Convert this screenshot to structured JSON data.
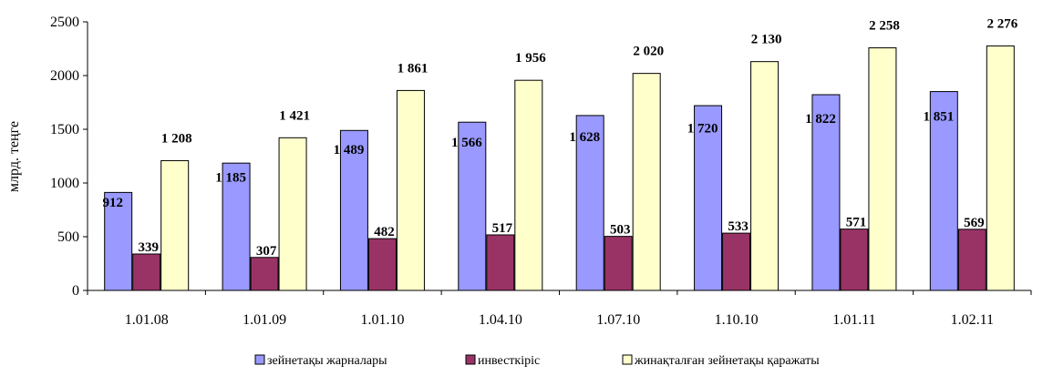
{
  "chart_data": {
    "type": "bar",
    "title": "",
    "xlabel": "",
    "ylabel": "млрд. теңге",
    "ylim": [
      0,
      2500
    ],
    "yticks": [
      0,
      500,
      1000,
      1500,
      2000,
      2500
    ],
    "grid": false,
    "legend_position": "bottom",
    "categories": [
      "1.01.08",
      "1.01.09",
      "1.01.10",
      "1.04.10",
      "1.07.10",
      "1.10.10",
      "1.01.11",
      "1.02.11"
    ],
    "series": [
      {
        "name": "зейнетақы жарналары",
        "color": "#9999ff",
        "values": [
          912,
          1185,
          1489,
          1566,
          1628,
          1720,
          1822,
          1851
        ],
        "labels": [
          "912",
          "1 185",
          "1 489",
          "1 566",
          "1 628",
          "1 720",
          "1 822",
          "1 851"
        ]
      },
      {
        "name": "инвесткіріс",
        "color": "#993366",
        "values": [
          339,
          307,
          482,
          517,
          503,
          533,
          571,
          569
        ],
        "labels": [
          "339",
          "307",
          "482",
          "517",
          "503",
          "533",
          "571",
          "569"
        ]
      },
      {
        "name": "жинақталған зейнетақы қаражаты",
        "color": "#ffffcc",
        "values": [
          1208,
          1421,
          1861,
          1956,
          2020,
          2130,
          2258,
          2276
        ],
        "labels": [
          "1 208",
          "1 421",
          "1 861",
          "1 956",
          "2 020",
          "2 130",
          "2 258",
          "2 276"
        ]
      }
    ]
  }
}
